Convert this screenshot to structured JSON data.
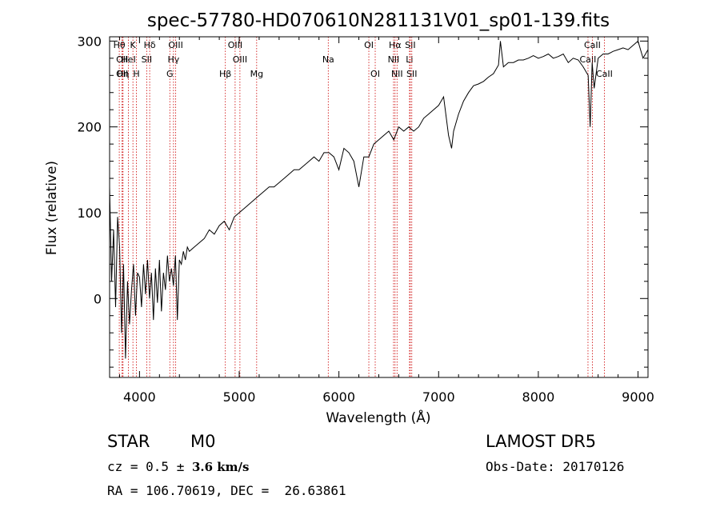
{
  "chart_data": {
    "type": "line",
    "title": "spec-57780-HD070610N281131V01_sp01-139.fits",
    "xlabel": "Wavelength (Å)",
    "ylabel": "Flux (relative)",
    "xlim": [
      3700,
      9100
    ],
    "ylim": [
      -92,
      305
    ],
    "xticks": [
      4000,
      5000,
      6000,
      7000,
      8000,
      9000
    ],
    "yticks": [
      0,
      100,
      200,
      300
    ],
    "line_color": "#000000",
    "marker_color": "#cc0000",
    "series": [
      {
        "x": [
          3700,
          3720,
          3740,
          3760,
          3780,
          3800,
          3820,
          3840,
          3860,
          3880,
          3900,
          3920,
          3940,
          3960,
          3980,
          4000,
          4020,
          4040,
          4060,
          4080,
          4100,
          4120,
          4140,
          4160,
          4180,
          4200,
          4220,
          4240,
          4260,
          4280,
          4300,
          4320,
          4340,
          4360,
          4380,
          4400,
          4420,
          4440,
          4460,
          4480,
          4500,
          4550,
          4600,
          4650,
          4700,
          4750,
          4800,
          4850,
          4900,
          4950,
          5000,
          5050,
          5100,
          5150,
          5200,
          5250,
          5300,
          5350,
          5400,
          5450,
          5500,
          5550,
          5600,
          5650,
          5700,
          5750,
          5800,
          5850,
          5900,
          5950,
          6000,
          6050,
          6100,
          6150,
          6200,
          6250,
          6300,
          6350,
          6400,
          6450,
          6500,
          6550,
          6600,
          6650,
          6700,
          6750,
          6800,
          6850,
          6900,
          6950,
          7000,
          7050,
          7100,
          7130,
          7150,
          7200,
          7250,
          7300,
          7350,
          7400,
          7450,
          7500,
          7550,
          7600,
          7620,
          7650,
          7700,
          7750,
          7800,
          7850,
          7900,
          7950,
          8000,
          8050,
          8100,
          8150,
          8200,
          8250,
          8300,
          8350,
          8400,
          8450,
          8500,
          8520,
          8540,
          8560,
          8600,
          8650,
          8700,
          8750,
          8800,
          8850,
          8900,
          8950,
          9000,
          9050,
          9100
        ],
        "y": [
          130,
          20,
          80,
          -10,
          95,
          60,
          -40,
          40,
          -70,
          20,
          -30,
          10,
          40,
          -20,
          30,
          25,
          -10,
          40,
          5,
          45,
          0,
          30,
          -25,
          35,
          -5,
          45,
          -15,
          30,
          10,
          50,
          20,
          35,
          15,
          50,
          -25,
          45,
          40,
          55,
          45,
          60,
          55,
          60,
          65,
          70,
          80,
          75,
          85,
          90,
          80,
          95,
          100,
          105,
          110,
          115,
          120,
          125,
          130,
          130,
          135,
          140,
          145,
          150,
          150,
          155,
          160,
          165,
          160,
          170,
          170,
          165,
          150,
          175,
          170,
          160,
          130,
          165,
          165,
          180,
          185,
          190,
          195,
          185,
          200,
          195,
          200,
          195,
          200,
          210,
          215,
          220,
          225,
          235,
          190,
          175,
          195,
          215,
          230,
          240,
          248,
          250,
          253,
          258,
          262,
          272,
          300,
          270,
          275,
          275,
          278,
          278,
          280,
          283,
          280,
          282,
          285,
          280,
          282,
          285,
          275,
          280,
          278,
          270,
          260,
          200,
          275,
          245,
          280,
          285,
          285,
          288,
          290,
          292,
          290,
          295,
          300,
          280,
          290
        ]
      }
    ],
    "lines": [
      {
        "x": 3797,
        "label": "Hθ",
        "row": 1
      },
      {
        "x": 3835,
        "label": "Hη",
        "row": 3
      },
      {
        "x": 3826,
        "label": "OII",
        "row": 2
      },
      {
        "x": 3826,
        "label": "OII",
        "row": 3
      },
      {
        "x": 3889,
        "label": "HeI",
        "row": 2
      },
      {
        "x": 3934,
        "label": "K",
        "row": 1
      },
      {
        "x": 3969,
        "label": "H",
        "row": 3
      },
      {
        "x": 4072,
        "label": "SII",
        "row": 2
      },
      {
        "x": 4102,
        "label": "Hδ",
        "row": 1
      },
      {
        "x": 4304,
        "label": "G",
        "row": 3
      },
      {
        "x": 4341,
        "label": "Hγ",
        "row": 2
      },
      {
        "x": 4363,
        "label": "OIII",
        "row": 1
      },
      {
        "x": 4861,
        "label": "Hβ",
        "row": 3
      },
      {
        "x": 4959,
        "label": "OIII",
        "row": 1
      },
      {
        "x": 5007,
        "label": "OIII",
        "row": 2
      },
      {
        "x": 5175,
        "label": "Mg",
        "row": 3
      },
      {
        "x": 5893,
        "label": "Na",
        "row": 2
      },
      {
        "x": 6300,
        "label": "OI",
        "row": 1
      },
      {
        "x": 6364,
        "label": "OI",
        "row": 3
      },
      {
        "x": 6563,
        "label": "Hα",
        "row": 1
      },
      {
        "x": 6548,
        "label": "NII",
        "row": 2
      },
      {
        "x": 6583,
        "label": "NII",
        "row": 3
      },
      {
        "x": 6708,
        "label": "Li",
        "row": 2
      },
      {
        "x": 6716,
        "label": "SII",
        "row": 1
      },
      {
        "x": 6731,
        "label": "SII",
        "row": 3
      },
      {
        "x": 8498,
        "label": "CaII",
        "row": 2
      },
      {
        "x": 8542,
        "label": "CaII",
        "row": 1
      },
      {
        "x": 8662,
        "label": "CaII",
        "row": 3
      }
    ]
  },
  "info": {
    "object_class": "STAR",
    "subclass": "M0",
    "survey": "LAMOST DR5",
    "cz_prefix": "cz = 0.5 ±",
    "cz_value": "3.6 km/s",
    "obs_date": "Obs-Date: 20170126",
    "radec": "RA = 106.70619, DEC =  26.63861"
  }
}
